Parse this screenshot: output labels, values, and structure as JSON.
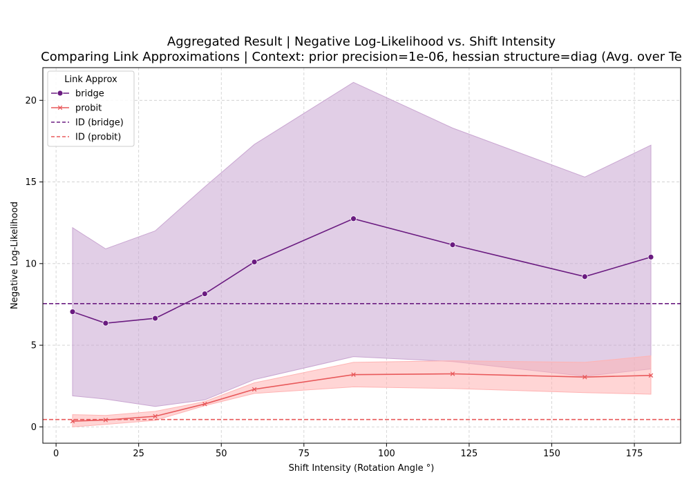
{
  "chart_data": {
    "type": "line",
    "title": "Aggregated Result | Negative Log-Likelihood vs. Shift Intensity",
    "subtitle": "Comparing Link Approximations | Context: prior precision=1e-06, hessian structure=diag (Avg. over Te",
    "xlabel": "Shift Intensity (Rotation Angle °)",
    "ylabel": "Negative Log-Likelihood",
    "xlim": [
      -4,
      189
    ],
    "ylim": [
      -1,
      22
    ],
    "x_ticks": [
      0,
      25,
      50,
      75,
      100,
      125,
      150,
      175
    ],
    "y_ticks": [
      0,
      5,
      10,
      15,
      20
    ],
    "grid": true,
    "legend": {
      "title": "Link Approx",
      "placement": "top-left"
    },
    "x": [
      5,
      15,
      30,
      45,
      60,
      90,
      120,
      160,
      180
    ],
    "series": [
      {
        "name": "bridge",
        "marker": "circle",
        "color": "#6a1b80",
        "band_color": "#c9a6d1",
        "values": [
          7.05,
          6.35,
          6.65,
          8.15,
          10.1,
          12.75,
          11.15,
          9.2,
          10.4
        ],
        "band_upper": [
          12.2,
          10.9,
          12.0,
          14.7,
          17.3,
          21.1,
          18.3,
          15.3,
          17.25
        ],
        "band_lower": [
          1.9,
          1.7,
          1.25,
          1.65,
          2.9,
          4.3,
          4.0,
          3.1,
          3.55
        ]
      },
      {
        "name": "probit",
        "marker": "x",
        "color": "#e8585a",
        "band_color": "#ffb3b3",
        "values": [
          0.35,
          0.42,
          0.65,
          1.4,
          2.3,
          3.2,
          3.25,
          3.05,
          3.15
        ],
        "band_upper": [
          0.75,
          0.7,
          0.95,
          1.55,
          2.7,
          3.95,
          4.05,
          3.95,
          4.35
        ],
        "band_lower": [
          0.0,
          0.15,
          0.4,
          1.3,
          2.05,
          2.45,
          2.35,
          2.1,
          2.0
        ]
      }
    ],
    "reference_lines": [
      {
        "name": "ID (bridge)",
        "y": 7.55,
        "color": "#6a1b80",
        "style": "dashed"
      },
      {
        "name": "ID (probit)",
        "y": 0.45,
        "color": "#e8585a",
        "style": "dashed"
      }
    ]
  }
}
